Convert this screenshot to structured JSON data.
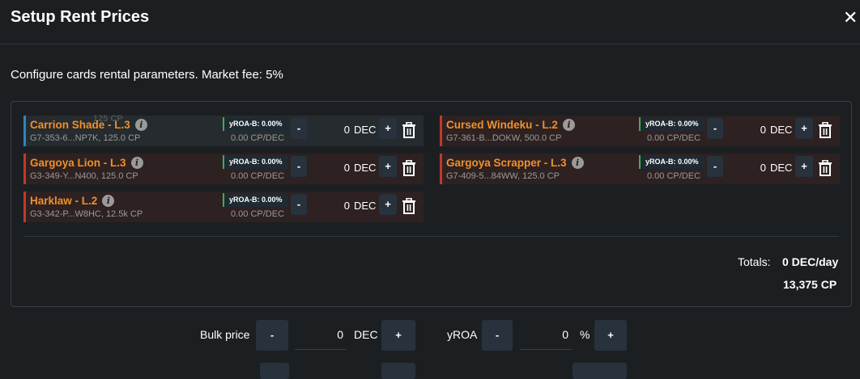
{
  "header": {
    "title": "Setup Rent Prices",
    "close_icon": "close-icon"
  },
  "subtitle": "Configure cards rental parameters. Market fee: 5%",
  "ghost_tooltip": "125 CP",
  "cards": [
    {
      "name": "Carrion Shade - L.3",
      "sub": "G7-353-6...NP7K, 125.0 CP",
      "yroa": "yROA-B: 0.00%",
      "cp_dec": "0.00 CP/DEC",
      "value": "0",
      "unit": "DEC",
      "minus": "-",
      "plus": "+",
      "selected": true
    },
    {
      "name": "Cursed Windeku - L.2",
      "sub": "G7-361-B...DOKW, 500.0 CP",
      "yroa": "yROA-B: 0.00%",
      "cp_dec": "0.00 CP/DEC",
      "value": "0",
      "unit": "DEC",
      "minus": "-",
      "plus": "+"
    },
    {
      "name": "Gargoya Lion - L.3",
      "sub": "G3-349-Y...N400, 125.0 CP",
      "yroa": "yROA-B: 0.00%",
      "cp_dec": "0.00 CP/DEC",
      "value": "0",
      "unit": "DEC",
      "minus": "-",
      "plus": "+"
    },
    {
      "name": "Gargoya Scrapper - L.3",
      "sub": "G7-409-5...84WW, 125.0 CP",
      "yroa": "yROA-B: 0.00%",
      "cp_dec": "0.00 CP/DEC",
      "value": "0",
      "unit": "DEC",
      "minus": "-",
      "plus": "+"
    },
    {
      "name": "Harklaw - L.2",
      "sub": "G3-342-P...W8HC, 12.5k CP",
      "yroa": "yROA-B: 0.00%",
      "cp_dec": "0.00 CP/DEC",
      "value": "0",
      "unit": "DEC",
      "minus": "-",
      "plus": "+"
    }
  ],
  "totals": {
    "label": "Totals:",
    "dec_per_day": "0 DEC/day",
    "cp": "13,375 CP"
  },
  "bulk": {
    "label": "Bulk price",
    "value": "0",
    "unit": "DEC",
    "minus": "-",
    "plus": "+"
  },
  "yroa": {
    "label": "yROA",
    "value": "0",
    "unit": "%",
    "minus": "-",
    "plus": "+"
  },
  "colors": {
    "accent": "#f0902a",
    "selected_border": "#2e86c1",
    "row_border": "#c0392b",
    "yroa_border": "#3fae4f"
  }
}
